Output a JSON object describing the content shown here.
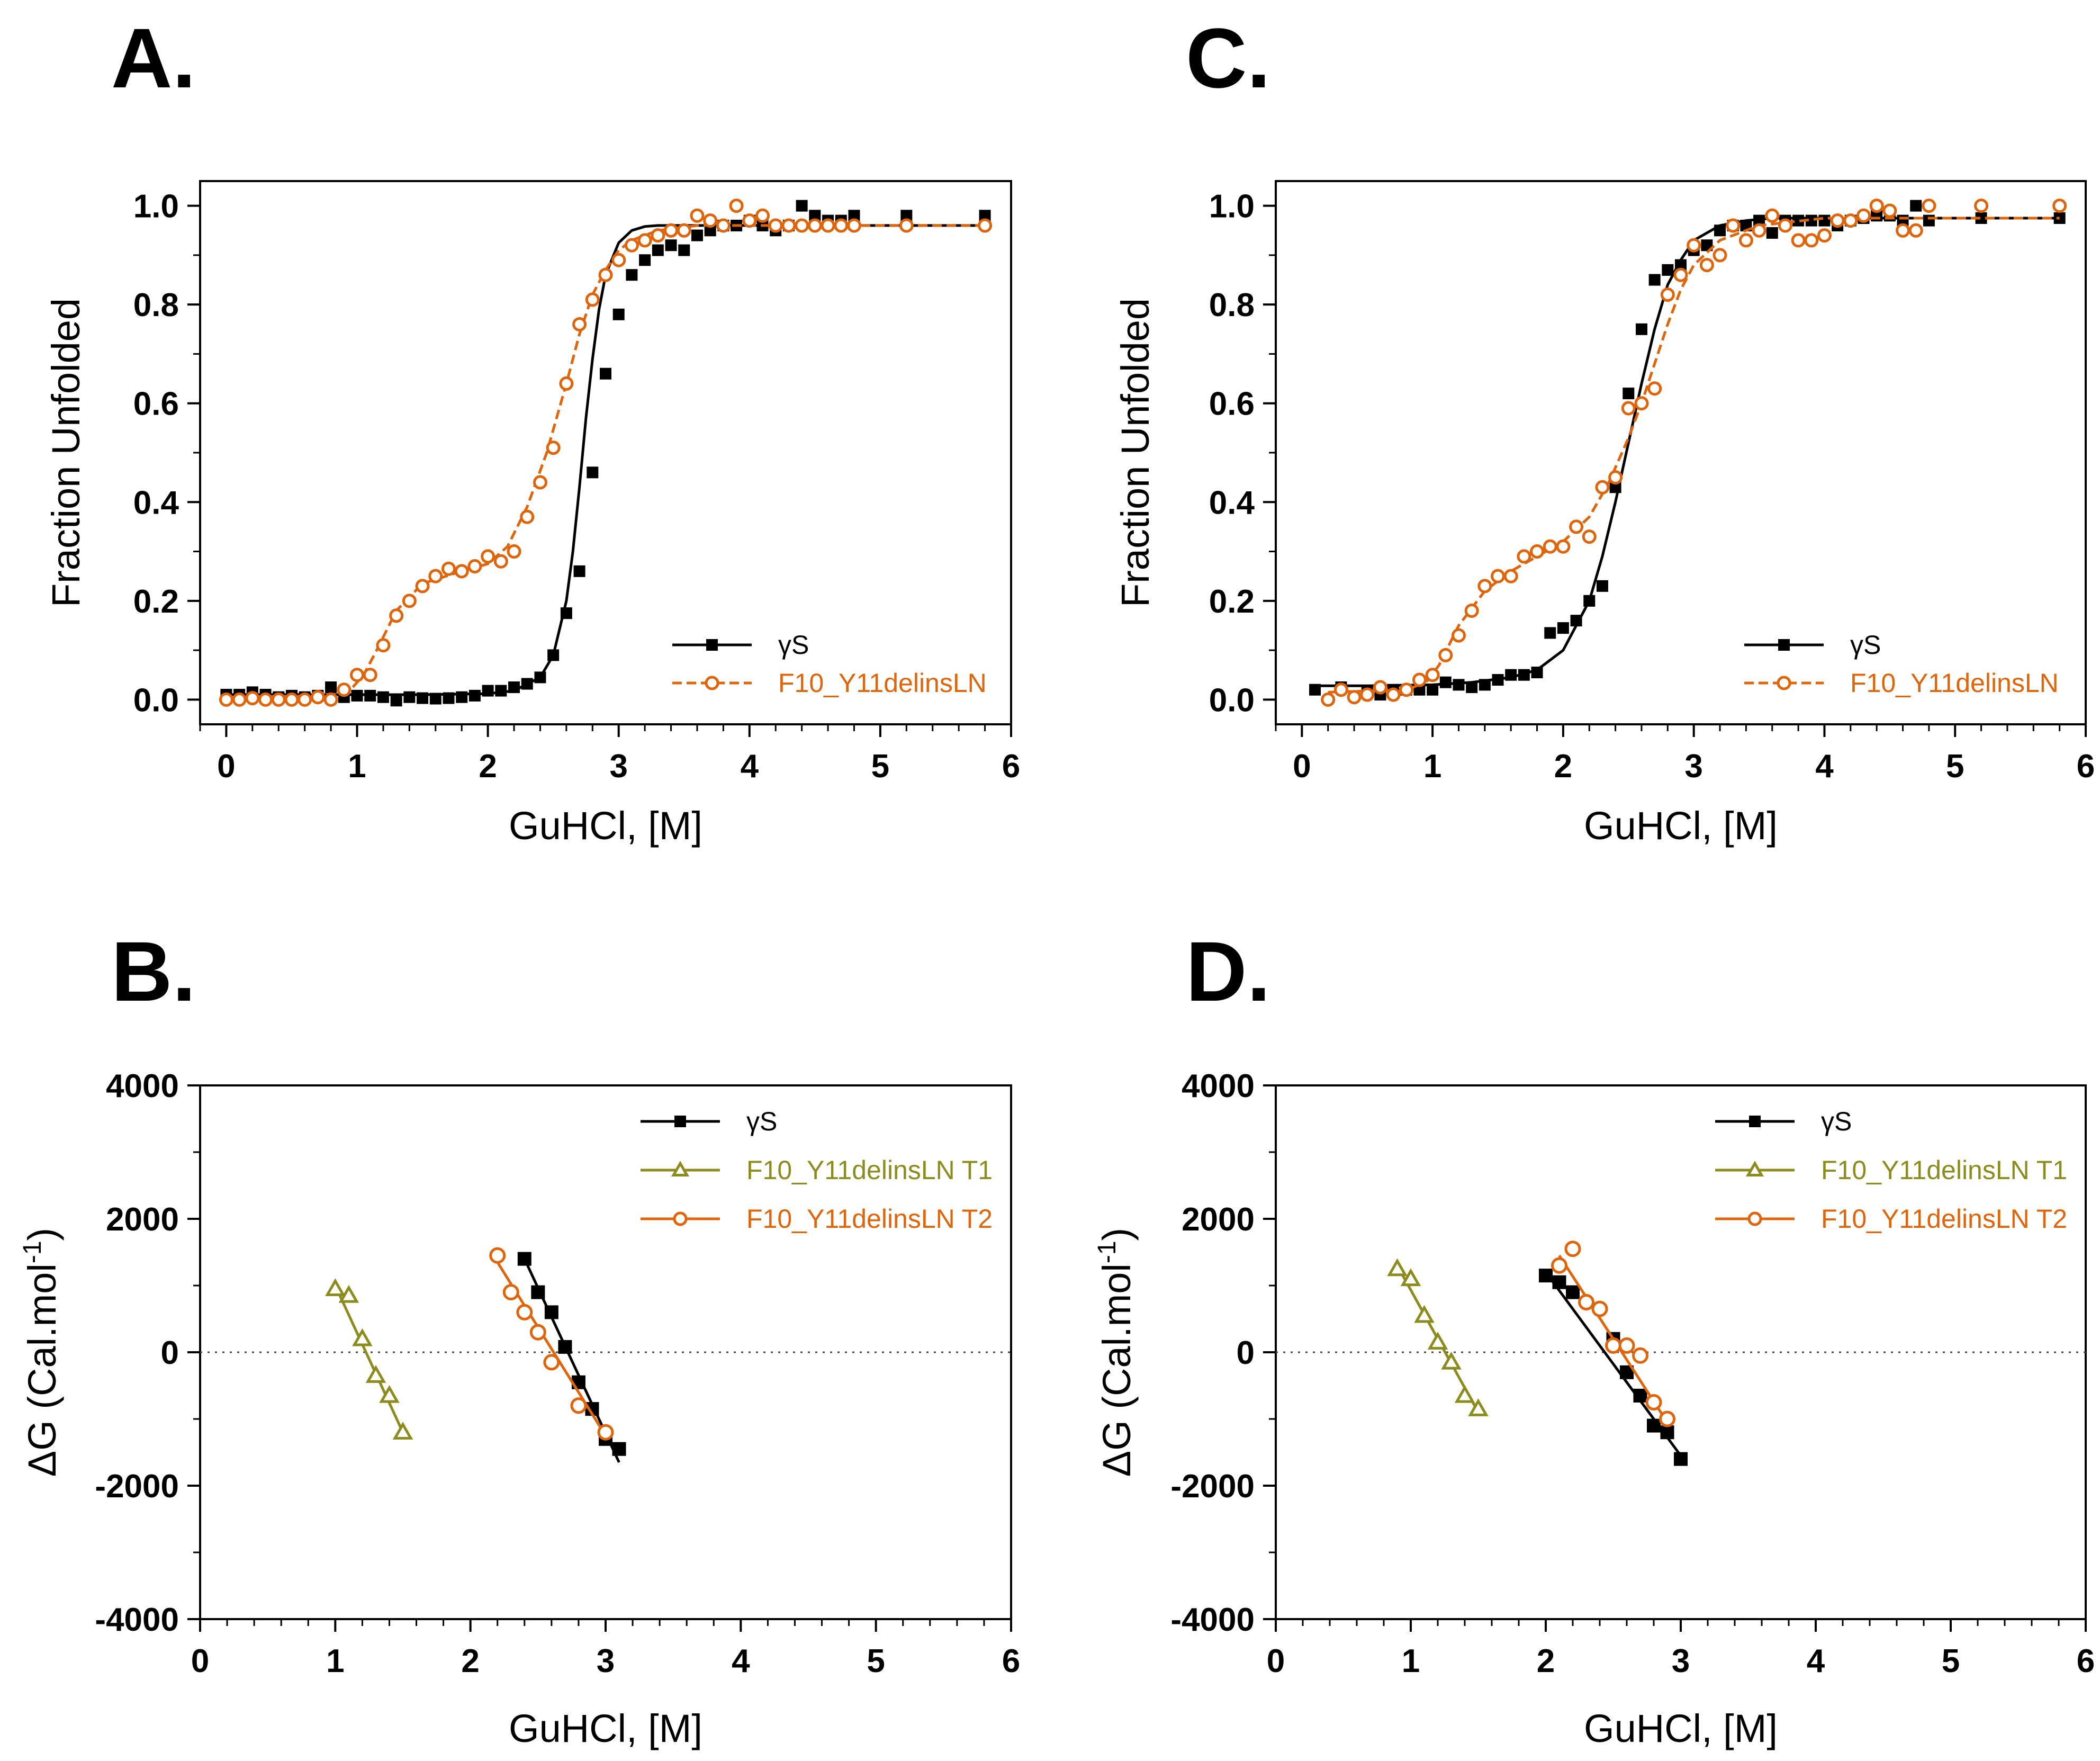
{
  "colors": {
    "black": "#000000",
    "orange": "#e0640a",
    "olive": "#8c8c1e"
  },
  "chart_data": [
    {
      "panel": "A.",
      "type": "line",
      "xlabel": "GuHCl, [M]",
      "ylabel": "Fraction Unfolded",
      "xlim": [
        -0.2,
        6
      ],
      "ylim": [
        -0.05,
        1.05
      ],
      "xticks": [
        "0",
        "1",
        "2",
        "3",
        "4",
        "5",
        "6"
      ],
      "xtick_values": [
        0,
        1,
        2,
        3,
        4,
        5,
        6
      ],
      "yticks": [
        "0.0",
        "0.2",
        "0.4",
        "0.6",
        "0.8",
        "1.0"
      ],
      "ytick_values": [
        0,
        0.2,
        0.4,
        0.6,
        0.8,
        1.0
      ],
      "legend_position": "bottom-right",
      "series": [
        {
          "name": "γS",
          "color": "#000000",
          "marker": "square-filled",
          "line": "solid",
          "x": [
            0,
            0.1,
            0.2,
            0.3,
            0.4,
            0.5,
            0.6,
            0.7,
            0.8,
            0.9,
            1.0,
            1.1,
            1.2,
            1.3,
            1.4,
            1.5,
            1.6,
            1.7,
            1.8,
            1.9,
            2.0,
            2.1,
            2.2,
            2.3,
            2.4,
            2.5,
            2.6,
            2.7,
            2.8,
            2.9,
            3.0,
            3.1,
            3.2,
            3.3,
            3.4,
            3.5,
            3.6,
            3.7,
            3.8,
            3.9,
            4.0,
            4.1,
            4.2,
            4.3,
            4.4,
            4.5,
            4.6,
            4.7,
            4.8,
            5.2,
            5.8
          ],
          "y": [
            0.01,
            0.01,
            0.015,
            0.01,
            0.005,
            0.008,
            0.005,
            0.008,
            0.025,
            0.005,
            0.008,
            0.008,
            0.005,
            -0.002,
            0.005,
            0.003,
            0.002,
            0.003,
            0.005,
            0.008,
            0.018,
            0.018,
            0.025,
            0.032,
            0.045,
            0.09,
            0.175,
            0.26,
            0.46,
            0.66,
            0.78,
            0.86,
            0.89,
            0.91,
            0.92,
            0.91,
            0.94,
            0.95,
            0.96,
            0.96,
            0.97,
            0.96,
            0.95,
            0.96,
            1.0,
            0.98,
            0.97,
            0.97,
            0.98,
            0.98,
            0.98
          ],
          "fit_x": [
            0,
            0.5,
            1,
            1.5,
            2,
            2.2,
            2.4,
            2.5,
            2.6,
            2.65,
            2.7,
            2.75,
            2.8,
            2.85,
            2.9,
            3.0,
            3.1,
            3.2,
            3.3,
            3.5,
            4,
            5,
            5.8
          ],
          "fit_y": [
            0.01,
            0.01,
            0.01,
            0.01,
            0.012,
            0.018,
            0.045,
            0.09,
            0.2,
            0.3,
            0.43,
            0.57,
            0.69,
            0.79,
            0.86,
            0.925,
            0.95,
            0.958,
            0.96,
            0.96,
            0.96,
            0.96,
            0.96
          ]
        },
        {
          "name": "F10_Y11delinsLN",
          "color": "#e0640a",
          "marker": "circle-open",
          "line": "dashed",
          "x": [
            0,
            0.1,
            0.2,
            0.3,
            0.4,
            0.5,
            0.6,
            0.7,
            0.8,
            0.9,
            1.0,
            1.1,
            1.2,
            1.3,
            1.4,
            1.5,
            1.6,
            1.7,
            1.8,
            1.9,
            2.0,
            2.1,
            2.2,
            2.3,
            2.4,
            2.5,
            2.6,
            2.7,
            2.8,
            2.9,
            3.0,
            3.1,
            3.2,
            3.3,
            3.4,
            3.5,
            3.6,
            3.7,
            3.8,
            3.9,
            4.0,
            4.1,
            4.2,
            4.3,
            4.4,
            4.5,
            4.6,
            4.7,
            4.8,
            5.2,
            5.8
          ],
          "y": [
            0.0,
            0.0,
            0.003,
            0.0,
            0.0,
            0.0,
            0.0,
            0.005,
            0.0,
            0.02,
            0.05,
            0.05,
            0.11,
            0.17,
            0.2,
            0.23,
            0.25,
            0.265,
            0.26,
            0.27,
            0.29,
            0.28,
            0.3,
            0.37,
            0.44,
            0.51,
            0.64,
            0.76,
            0.81,
            0.86,
            0.89,
            0.92,
            0.93,
            0.94,
            0.95,
            0.95,
            0.98,
            0.97,
            0.96,
            1.0,
            0.97,
            0.98,
            0.96,
            0.96,
            0.96,
            0.96,
            0.96,
            0.96,
            0.96,
            0.96,
            0.96
          ],
          "fit_x": [
            0,
            0.8,
            0.95,
            1.05,
            1.15,
            1.3,
            1.5,
            1.8,
            2.0,
            2.15,
            2.3,
            2.45,
            2.6,
            2.7,
            2.8,
            2.9,
            3.0,
            3.1,
            3.3,
            3.6,
            4,
            5,
            5.8
          ],
          "fit_y": [
            0.005,
            0.008,
            0.02,
            0.05,
            0.1,
            0.18,
            0.235,
            0.26,
            0.275,
            0.31,
            0.39,
            0.5,
            0.64,
            0.74,
            0.82,
            0.87,
            0.91,
            0.93,
            0.95,
            0.96,
            0.96,
            0.96,
            0.96
          ]
        }
      ]
    },
    {
      "panel": "C.",
      "type": "line",
      "xlabel": "GuHCl, [M]",
      "ylabel": "Fraction Unfolded",
      "xlim": [
        -0.2,
        6
      ],
      "ylim": [
        -0.05,
        1.05
      ],
      "xticks": [
        "0",
        "1",
        "2",
        "3",
        "4",
        "5",
        "6"
      ],
      "xtick_values": [
        0,
        1,
        2,
        3,
        4,
        5,
        6
      ],
      "yticks": [
        "0.0",
        "0.2",
        "0.4",
        "0.6",
        "0.8",
        "1.0"
      ],
      "ytick_values": [
        0,
        0.2,
        0.4,
        0.6,
        0.8,
        1.0
      ],
      "legend_position": "bottom-right",
      "series": [
        {
          "name": "γS",
          "color": "#000000",
          "marker": "square-filled",
          "line": "solid",
          "x": [
            0.1,
            0.3,
            0.5,
            0.6,
            0.7,
            0.8,
            0.9,
            1.0,
            1.1,
            1.2,
            1.3,
            1.4,
            1.5,
            1.6,
            1.7,
            1.8,
            1.9,
            2.0,
            2.1,
            2.2,
            2.3,
            2.4,
            2.5,
            2.6,
            2.7,
            2.8,
            2.9,
            3.0,
            3.1,
            3.2,
            3.3,
            3.4,
            3.5,
            3.6,
            3.7,
            3.8,
            3.9,
            4.0,
            4.1,
            4.2,
            4.3,
            4.4,
            4.5,
            4.6,
            4.7,
            4.8,
            5.2,
            5.8
          ],
          "y": [
            0.02,
            0.025,
            0.015,
            0.01,
            0.02,
            0.02,
            0.02,
            0.02,
            0.035,
            0.03,
            0.025,
            0.03,
            0.04,
            0.05,
            0.05,
            0.055,
            0.135,
            0.145,
            0.16,
            0.2,
            0.23,
            0.43,
            0.62,
            0.75,
            0.85,
            0.87,
            0.88,
            0.91,
            0.92,
            0.95,
            0.96,
            0.96,
            0.97,
            0.945,
            0.97,
            0.97,
            0.97,
            0.97,
            0.96,
            0.97,
            0.975,
            0.98,
            0.98,
            0.97,
            1.0,
            0.97,
            0.975,
            0.975
          ],
          "fit_x": [
            0.1,
            0.5,
            1.0,
            1.3,
            1.6,
            1.8,
            2.0,
            2.2,
            2.3,
            2.4,
            2.5,
            2.6,
            2.7,
            2.8,
            2.9,
            3.0,
            3.2,
            3.4,
            3.6,
            4,
            5,
            5.8
          ],
          "fit_y": [
            0.028,
            0.028,
            0.03,
            0.035,
            0.045,
            0.06,
            0.1,
            0.2,
            0.29,
            0.4,
            0.52,
            0.64,
            0.75,
            0.84,
            0.89,
            0.93,
            0.96,
            0.97,
            0.975,
            0.975,
            0.975,
            0.975
          ]
        },
        {
          "name": "F10_Y11delinsLN",
          "color": "#e0640a",
          "marker": "circle-open",
          "line": "dashed",
          "x": [
            0.2,
            0.3,
            0.4,
            0.5,
            0.6,
            0.7,
            0.8,
            0.9,
            1.0,
            1.1,
            1.2,
            1.3,
            1.4,
            1.5,
            1.6,
            1.7,
            1.8,
            1.9,
            2.0,
            2.1,
            2.2,
            2.3,
            2.4,
            2.5,
            2.6,
            2.7,
            2.8,
            2.9,
            3.0,
            3.1,
            3.2,
            3.3,
            3.4,
            3.5,
            3.6,
            3.7,
            3.8,
            3.9,
            4.0,
            4.1,
            4.2,
            4.3,
            4.4,
            4.5,
            4.6,
            4.7,
            4.8,
            5.2,
            5.8
          ],
          "y": [
            0.0,
            0.02,
            0.005,
            0.01,
            0.025,
            0.01,
            0.02,
            0.04,
            0.05,
            0.09,
            0.13,
            0.18,
            0.23,
            0.25,
            0.25,
            0.29,
            0.3,
            0.31,
            0.31,
            0.35,
            0.33,
            0.43,
            0.45,
            0.59,
            0.6,
            0.63,
            0.82,
            0.86,
            0.92,
            0.88,
            0.9,
            0.96,
            0.93,
            0.95,
            0.98,
            0.96,
            0.93,
            0.93,
            0.94,
            0.97,
            0.97,
            0.98,
            1.0,
            0.99,
            0.95,
            0.95,
            1.0,
            1.0,
            1.0
          ],
          "fit_x": [
            0.2,
            0.8,
            0.95,
            1.05,
            1.2,
            1.4,
            1.6,
            1.8,
            2.0,
            2.2,
            2.35,
            2.5,
            2.6,
            2.7,
            2.8,
            2.9,
            3.0,
            3.2,
            3.5,
            4,
            5,
            5.8
          ],
          "fit_y": [
            0.015,
            0.02,
            0.035,
            0.07,
            0.15,
            0.22,
            0.26,
            0.29,
            0.32,
            0.37,
            0.44,
            0.53,
            0.6,
            0.68,
            0.76,
            0.83,
            0.88,
            0.93,
            0.96,
            0.975,
            0.975,
            0.975
          ]
        }
      ]
    },
    {
      "panel": "B.",
      "type": "line",
      "xlabel": "GuHCl, [M]",
      "ylabel": "ΔG (Cal.mol",
      "ylabel_sup": "-1",
      "ylabel_tail": ")",
      "xlim": [
        0,
        6
      ],
      "ylim": [
        -4000,
        4000
      ],
      "xticks": [
        "0",
        "1",
        "2",
        "3",
        "4",
        "5",
        "6"
      ],
      "xtick_values": [
        0,
        1,
        2,
        3,
        4,
        5,
        6
      ],
      "yticks": [
        "-4000",
        "-2000",
        "0",
        "2000",
        "4000"
      ],
      "ytick_values": [
        -4000,
        -2000,
        0,
        2000,
        4000
      ],
      "zero_line": true,
      "legend_position": "top-right",
      "series": [
        {
          "name": "γS",
          "color": "#000000",
          "marker": "square-filled",
          "line": "solid",
          "x": [
            2.4,
            2.5,
            2.6,
            2.7,
            2.8,
            2.9,
            3.0,
            3.1
          ],
          "y": [
            1400,
            900,
            600,
            80,
            -450,
            -850,
            -1300,
            -1450
          ],
          "fit_x": [
            2.4,
            3.1
          ],
          "fit_y": [
            1400,
            -1650
          ]
        },
        {
          "name": "F10_Y11delinsLN T1",
          "color": "#8c8c1e",
          "marker": "triangle-open",
          "line": "solid",
          "x": [
            1.0,
            1.1,
            1.2,
            1.3,
            1.4,
            1.5
          ],
          "y": [
            950,
            850,
            200,
            -350,
            -650,
            -1200
          ],
          "fit_x": [
            1.0,
            1.5
          ],
          "fit_y": [
            1000,
            -1200
          ]
        },
        {
          "name": "F10_Y11delinsLN T2",
          "color": "#e0640a",
          "marker": "circle-open",
          "line": "solid",
          "x": [
            2.2,
            2.3,
            2.4,
            2.5,
            2.6,
            2.8,
            3.0
          ],
          "y": [
            1450,
            900,
            600,
            300,
            -150,
            -800,
            -1200
          ],
          "fit_x": [
            2.2,
            3.0
          ],
          "fit_y": [
            1350,
            -1250
          ]
        }
      ]
    },
    {
      "panel": "D.",
      "type": "line",
      "xlabel": "GuHCl, [M]",
      "ylabel": "ΔG (Cal.mol",
      "ylabel_sup": "-1",
      "ylabel_tail": ")",
      "xlim": [
        0,
        6
      ],
      "ylim": [
        -4000,
        4000
      ],
      "xticks": [
        "0",
        "1",
        "2",
        "3",
        "4",
        "5",
        "6"
      ],
      "xtick_values": [
        0,
        1,
        2,
        3,
        4,
        5,
        6
      ],
      "yticks": [
        "-4000",
        "-2000",
        "0",
        "2000",
        "4000"
      ],
      "ytick_values": [
        -4000,
        -2000,
        0,
        2000,
        4000
      ],
      "zero_line": true,
      "legend_position": "top-right",
      "series": [
        {
          "name": "γS",
          "color": "#000000",
          "marker": "square-filled",
          "line": "solid",
          "x": [
            2.0,
            2.1,
            2.2,
            2.5,
            2.6,
            2.7,
            2.8,
            2.9,
            3.0
          ],
          "y": [
            1150,
            1050,
            900,
            200,
            -300,
            -650,
            -1100,
            -1200,
            -1600
          ],
          "fit_x": [
            2.0,
            3.0
          ],
          "fit_y": [
            1200,
            -1550
          ]
        },
        {
          "name": "F10_Y11delinsLN T1",
          "color": "#8c8c1e",
          "marker": "triangle-open",
          "line": "solid",
          "x": [
            0.9,
            1.0,
            1.1,
            1.2,
            1.3,
            1.4,
            1.5
          ],
          "y": [
            1250,
            1100,
            550,
            150,
            -150,
            -650,
            -850
          ],
          "fit_x": [
            0.9,
            1.5
          ],
          "fit_y": [
            1300,
            -900
          ]
        },
        {
          "name": "F10_Y11delinsLN T2",
          "color": "#e0640a",
          "marker": "circle-open",
          "line": "solid",
          "x": [
            2.1,
            2.2,
            2.3,
            2.4,
            2.5,
            2.6,
            2.7,
            2.8,
            2.9
          ],
          "y": [
            1300,
            1550,
            750,
            650,
            100,
            100,
            -50,
            -750,
            -1000
          ],
          "fit_x": [
            2.1,
            2.9
          ],
          "fit_y": [
            1450,
            -1050
          ]
        }
      ]
    }
  ]
}
